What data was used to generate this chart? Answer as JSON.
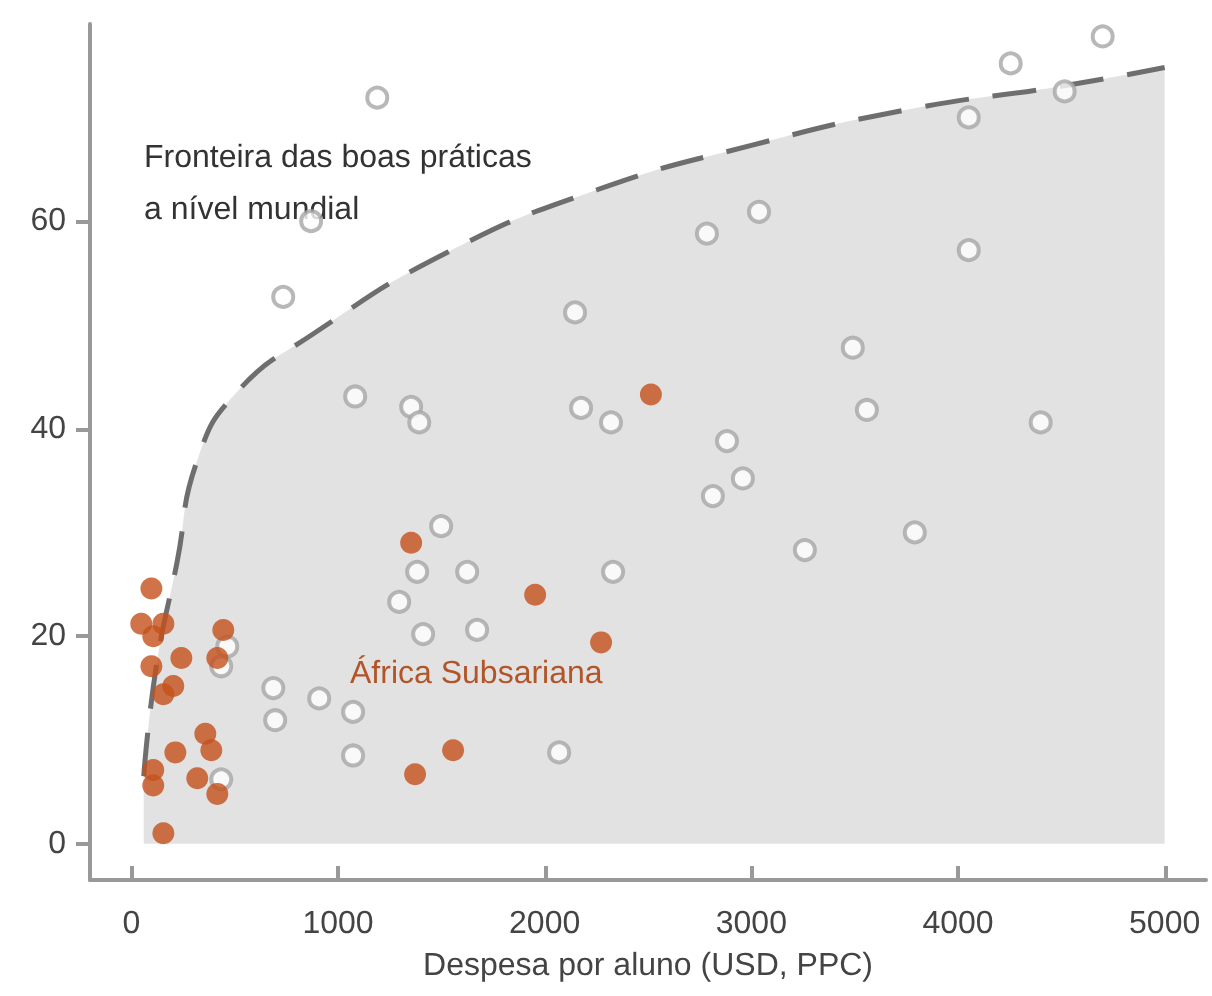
{
  "chart_data": {
    "type": "scatter",
    "xlabel": "Despesa por aluno (USD, PPC)",
    "xlim": [
      -200,
      5200
    ],
    "ylim": [
      -3.5,
      79
    ],
    "xticks": [
      0,
      1000,
      2000,
      3000,
      4000,
      5000
    ],
    "yticks": [
      0,
      20,
      40,
      60
    ],
    "grid": false,
    "legend": false,
    "marker": "circle",
    "series": [
      {
        "name": "Fronteira das boas práticas a nível mundial",
        "type": "area",
        "marker": "none",
        "line_style": "dashed",
        "color": "#6e6e6e",
        "x": [
          60,
          120,
          220,
          320,
          510,
          870,
          1530,
          2250,
          3000,
          3770,
          4500,
          5000
        ],
        "values": [
          6.5,
          17,
          27,
          37,
          43.5,
          49,
          57,
          63,
          67.3,
          70.8,
          73,
          74.8
        ]
      },
      {
        "color": "#a6a6a6",
        "x": [
          1190,
          870,
          4700,
          4255,
          4516,
          4052,
          3037,
          2785,
          4052,
          2147,
          3491,
          1083,
          1354,
          1393,
          2176,
          2321,
          3559,
          4400,
          2882,
          2959,
          2814,
          3791,
          3259,
          1499,
          1383,
          1625,
          2331,
          1296,
          1412,
          1673,
          687,
          696,
          909,
          1073,
          1073,
          2070,
          435,
          464,
          435,
          735
        ],
        "values": [
          71.9,
          60,
          77.8,
          75.2,
          72.5,
          70,
          60.9,
          58.8,
          57.2,
          51.2,
          47.8,
          43.1,
          42.1,
          40.6,
          42,
          40.6,
          41.8,
          40.6,
          38.8,
          35.2,
          33.5,
          30,
          28.3,
          30.6,
          26.2,
          26.2,
          26.2,
          23.3,
          20.2,
          20.6,
          15,
          11.9,
          14,
          12.7,
          8.5,
          8.8,
          6.2,
          19,
          17.1,
          52.7
        ]
      },
      {
        "name": "África Subsariana",
        "color": "#c4501a",
        "x": [
          2514,
          1354,
          1954,
          2273,
          97,
          48,
          155,
          106,
          445,
          97,
          242,
          416,
          203,
          155,
          358,
          213,
          387,
          106,
          106,
          319,
          416,
          155,
          1373,
          1557
        ],
        "values": [
          43.3,
          29,
          24,
          19.4,
          24.6,
          21.2,
          21.2,
          20,
          20.6,
          17.1,
          17.9,
          17.9,
          15.2,
          14.4,
          10.6,
          8.8,
          9,
          7.1,
          5.6,
          6.3,
          4.8,
          1,
          6.7,
          9
        ]
      }
    ]
  }
}
